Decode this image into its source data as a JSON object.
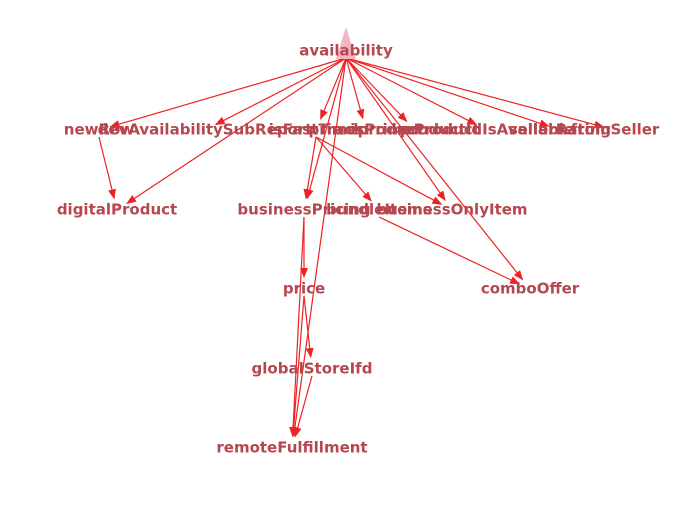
{
  "graph": {
    "colors": {
      "node_text": "#b5484f",
      "edge": "#ee2222",
      "root_marker": "#f7b3c2",
      "background": "#ffffff"
    },
    "nodes": [
      {
        "id": "availability",
        "label": "availability"
      },
      {
        "id": "newRow",
        "label": "newRow"
      },
      {
        "id": "devAvailabilitySubReport",
        "label": "devAvailabilitySubReport"
      },
      {
        "id": "isFastTrack",
        "label": "isFastTrack"
      },
      {
        "id": "primeproduct",
        "label": "primeproduct"
      },
      {
        "id": "isPrimeProduct",
        "label": "isPrimeProduct"
      },
      {
        "id": "productIdIsAvailable",
        "label": "productIdIsAvailable"
      },
      {
        "id": "sellerRating",
        "label": "sellerRating"
      },
      {
        "id": "fromSeller",
        "label": "fromSeller"
      },
      {
        "id": "digitalProduct",
        "label": "digitalProduct"
      },
      {
        "id": "businessPricing",
        "label": "businessPricing"
      },
      {
        "id": "bundleItems",
        "label": "bundleItems"
      },
      {
        "id": "businessOnlyItem",
        "label": "businessOnlyItem"
      },
      {
        "id": "price",
        "label": "price"
      },
      {
        "id": "comboOffer",
        "label": "comboOffer"
      },
      {
        "id": "globalStoreIfd",
        "label": "globalStoreIfd"
      },
      {
        "id": "remoteFulfillment",
        "label": "remoteFulfillment"
      }
    ],
    "edges": [
      [
        "availability",
        "newRow"
      ],
      [
        "availability",
        "devAvailabilitySubReport"
      ],
      [
        "availability",
        "isFastTrack"
      ],
      [
        "availability",
        "primeproduct"
      ],
      [
        "availability",
        "isPrimeProduct"
      ],
      [
        "availability",
        "productIdIsAvailable"
      ],
      [
        "availability",
        "sellerRating"
      ],
      [
        "availability",
        "fromSeller"
      ],
      [
        "availability",
        "digitalProduct"
      ],
      [
        "availability",
        "businessPricing"
      ],
      [
        "availability",
        "businessOnlyItem"
      ],
      [
        "availability",
        "comboOffer"
      ],
      [
        "availability",
        "remoteFulfillment"
      ],
      [
        "newRow",
        "digitalProduct"
      ],
      [
        "isFastTrack",
        "businessPricing"
      ],
      [
        "isFastTrack",
        "bundleItems"
      ],
      [
        "isFastTrack",
        "businessOnlyItem"
      ],
      [
        "businessPricing",
        "price"
      ],
      [
        "bundleItems",
        "comboOffer"
      ],
      [
        "price",
        "globalStoreIfd"
      ],
      [
        "price",
        "remoteFulfillment"
      ],
      [
        "globalStoreIfd",
        "remoteFulfillment"
      ],
      [
        "businessPricing",
        "remoteFulfillment"
      ]
    ]
  }
}
